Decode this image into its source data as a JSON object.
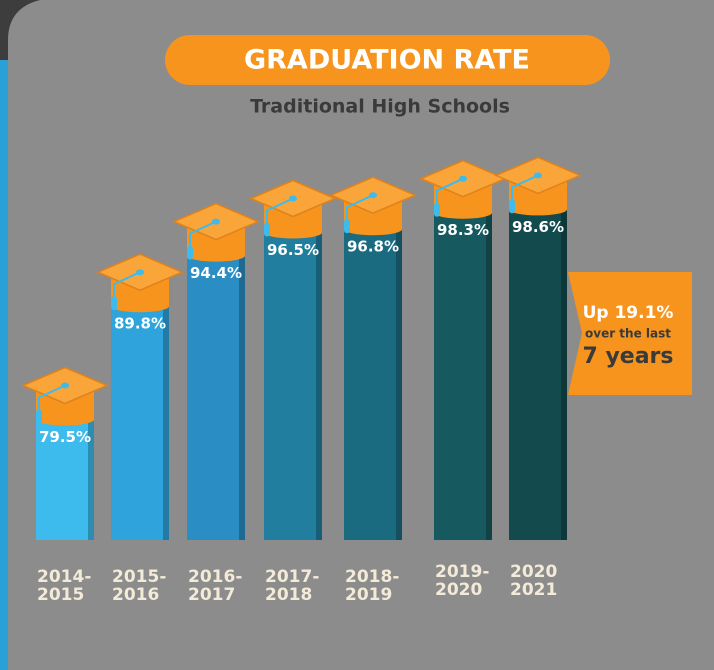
{
  "chart_data": {
    "type": "bar",
    "title": "GRADUATION RATE",
    "subtitle": "Traditional High Schools",
    "categories": [
      "2014-\n2015",
      "2015-\n2016",
      "2016-\n2017",
      "2017-\n2018",
      "2018-\n2019",
      "2019-\n2020",
      "2020\n2021"
    ],
    "values": [
      79.5,
      89.8,
      94.4,
      96.5,
      96.8,
      98.3,
      98.6
    ],
    "value_labels": [
      "79.5%",
      "89.8%",
      "94.4%",
      "96.5%",
      "96.8%",
      "98.3%",
      "98.6%"
    ],
    "colors": [
      "#3dbbec",
      "#2ea3dc",
      "#2a8ec4",
      "#217e9e",
      "#1b6b80",
      "#16595e",
      "#134a4e"
    ],
    "ylim": [
      66,
      100
    ],
    "annotation": [
      "Up 19.1%",
      "over the last",
      "7 years"
    ]
  }
}
